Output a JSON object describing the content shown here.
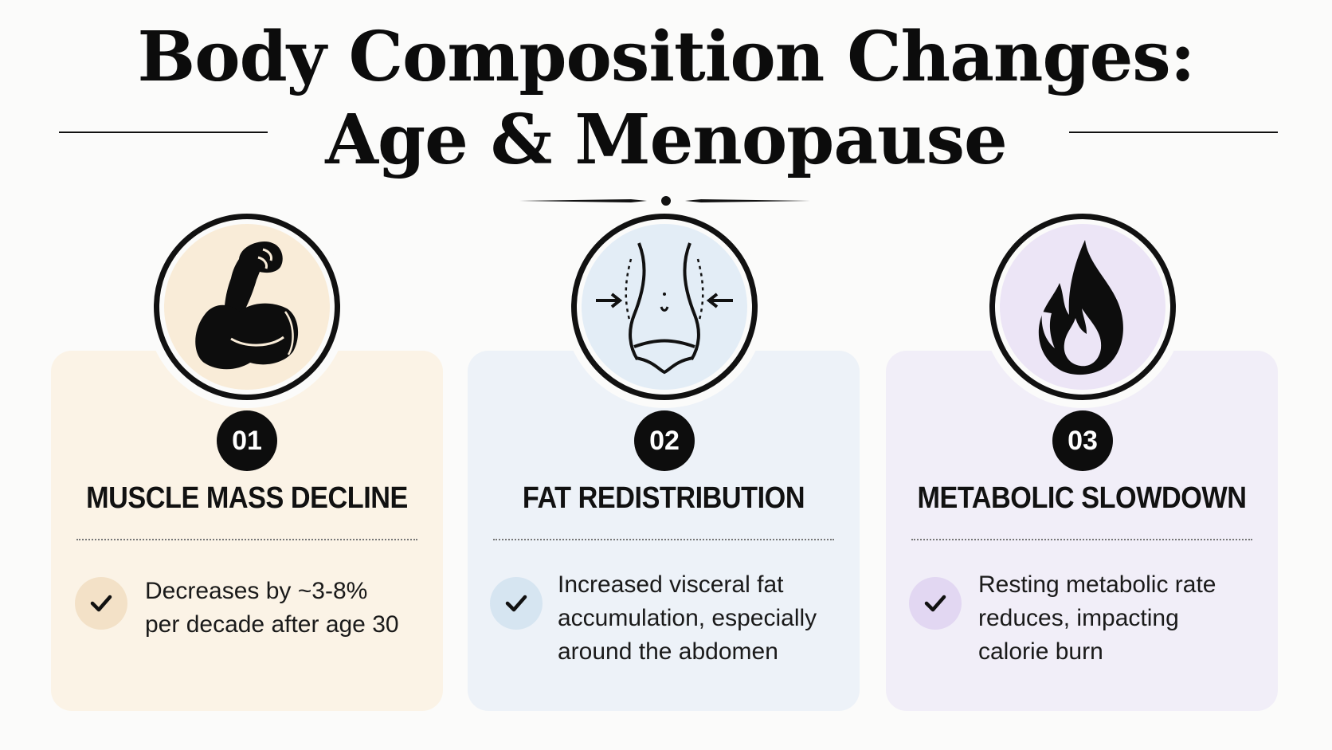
{
  "header": {
    "title_line1": "Body Composition Changes:",
    "title_line2": "Age & Menopause"
  },
  "colors": {
    "muscle": "#fbf3e6",
    "fat": "#edf2f8",
    "metabolic": "#f1eef8",
    "accent_dark": "#0d0d0d"
  },
  "cards": [
    {
      "number": "01",
      "title": "MUSCLE MASS DECLINE",
      "icon": "flexed-arm-icon",
      "description_lines": [
        "Decreases by ~3-8%",
        "per decade after age 30"
      ]
    },
    {
      "number": "02",
      "title": "FAT REDISTRIBUTION",
      "icon": "waist-icon",
      "description_lines": [
        "Increased visceral fat",
        "accumulation, especially",
        "around the abdomen"
      ]
    },
    {
      "number": "03",
      "title": "METABOLIC SLOWDOWN",
      "icon": "flame-icon",
      "description_lines": [
        "Resting metabolic rate",
        "reduces, impacting",
        "calorie burn"
      ]
    }
  ]
}
